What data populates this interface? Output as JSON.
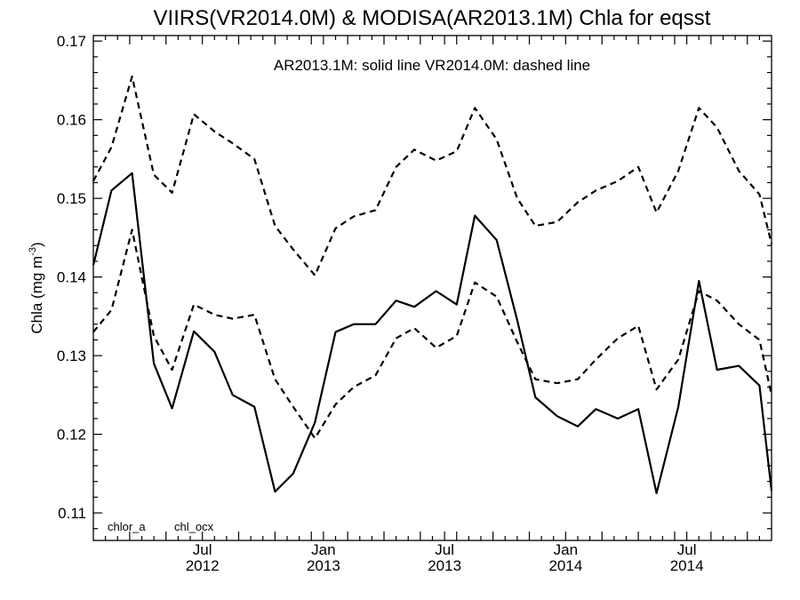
{
  "chart_data": {
    "type": "line",
    "title": "VIIRS(VR2014.0M) & MODISA(AR2013.1M)  Chla for eqsst",
    "subtitle": "AR2013.1M: solid line   VR2014.0M: dashed line",
    "ylabel_base": "Chla (mg m",
    "ylabel_sup": "-3",
    "ylabel_close": ")",
    "ylim": [
      0.1065,
      0.1707
    ],
    "yticks": [
      "0.11",
      "0.12",
      "0.13",
      "0.14",
      "0.15",
      "0.16",
      "0.17"
    ],
    "xlim": [
      0,
      56
    ],
    "xticks": [
      {
        "x": 9,
        "month": "Jul",
        "year": "2012"
      },
      {
        "x": 19,
        "month": "Jan",
        "year": "2013"
      },
      {
        "x": 29,
        "month": "Jul",
        "year": "2013"
      },
      {
        "x": 39,
        "month": "Jan",
        "year": "2014"
      },
      {
        "x": 49,
        "month": "Jul",
        "year": "2014"
      }
    ],
    "corner_labels": [
      "chlor_a",
      "chl_ocx"
    ],
    "x": [
      0,
      1.5,
      3.2,
      5,
      6.5,
      8.3,
      10,
      11.5,
      13.3,
      15,
      16.5,
      18.3,
      20,
      21.5,
      23.3,
      25,
      26.5,
      28.3,
      30,
      31.5,
      33.3,
      35,
      36.5,
      38.3,
      40,
      41.5,
      43.3,
      45,
      46.5,
      48.3,
      50,
      51.5,
      53.3,
      55,
      56
    ],
    "series": [
      {
        "style": "solid",
        "values": [
          0.1415,
          0.151,
          0.1532,
          0.129,
          0.1233,
          0.1331,
          0.1305,
          0.125,
          0.1235,
          0.1127,
          0.115,
          0.1215,
          0.133,
          0.134,
          0.134,
          0.137,
          0.1362,
          0.1382,
          0.1365,
          0.1478,
          0.1447,
          0.1345,
          0.1247,
          0.1223,
          0.121,
          0.1232,
          0.122,
          0.1232,
          0.1125,
          0.1235,
          0.1395,
          0.1282,
          0.1287,
          0.1262,
          0.1128
        ]
      },
      {
        "style": "dashed",
        "values": [
          0.1522,
          0.1565,
          0.1655,
          0.153,
          0.1507,
          0.1607,
          0.1585,
          0.157,
          0.155,
          0.1465,
          0.1435,
          0.1402,
          0.1462,
          0.1477,
          0.1485,
          0.154,
          0.1562,
          0.1548,
          0.156,
          0.1615,
          0.1575,
          0.15,
          0.1465,
          0.147,
          0.1495,
          0.151,
          0.1522,
          0.154,
          0.1482,
          0.1535,
          0.1615,
          0.159,
          0.1535,
          0.1505,
          0.1442
        ]
      },
      {
        "style": "dashed",
        "values": [
          0.133,
          0.1358,
          0.146,
          0.1325,
          0.1282,
          0.1365,
          0.1352,
          0.1347,
          0.1352,
          0.127,
          0.1235,
          0.1195,
          0.1238,
          0.126,
          0.1275,
          0.1322,
          0.1335,
          0.131,
          0.1325,
          0.1393,
          0.1375,
          0.1317,
          0.127,
          0.1265,
          0.127,
          0.1295,
          0.1322,
          0.1338,
          0.1257,
          0.1295,
          0.1382,
          0.137,
          0.134,
          0.132,
          0.125
        ]
      }
    ]
  }
}
